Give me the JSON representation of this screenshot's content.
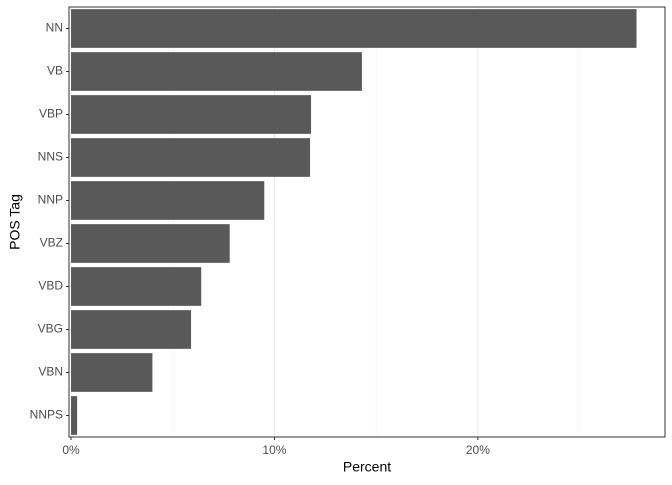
{
  "chart_data": {
    "type": "bar",
    "orientation": "horizontal",
    "x_label": "Percent",
    "y_label": "POS Tag",
    "categories": [
      "NN",
      "VB",
      "VBP",
      "NNS",
      "NNP",
      "VBZ",
      "VBD",
      "VBG",
      "VBN",
      "NNPS"
    ],
    "values": [
      27.8,
      14.3,
      11.8,
      11.75,
      9.5,
      7.8,
      6.4,
      5.9,
      4.0,
      0.3
    ],
    "color": "#595959",
    "xlim": [
      -0.1,
      29.2
    ],
    "xticks": [
      {
        "value": 0,
        "label": "0%"
      },
      {
        "value": 10,
        "label": "10%"
      },
      {
        "value": 20,
        "label": "20%"
      }
    ],
    "minor_xticks": [
      5,
      15,
      25
    ],
    "grid": true
  }
}
